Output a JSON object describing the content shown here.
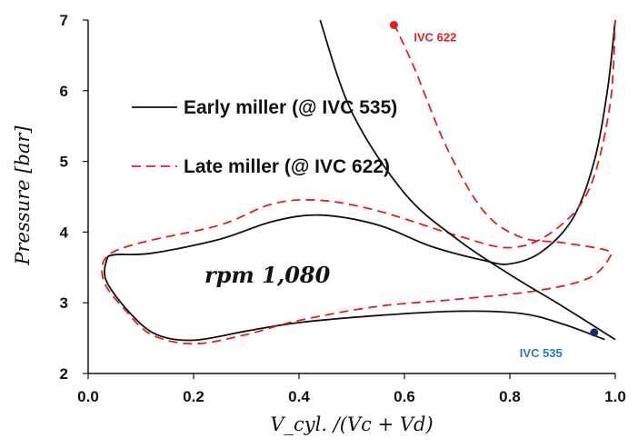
{
  "chart_data": {
    "type": "line",
    "xlabel": "V_cyl. /(Vc + Vd)",
    "ylabel": "Pressure [bar]",
    "xlim": [
      0.0,
      1.0
    ],
    "ylim": [
      2,
      7
    ],
    "xticks": [
      "0.0",
      "0.2",
      "0.4",
      "0.6",
      "0.8",
      "1.0"
    ],
    "yticks": [
      "2",
      "3",
      "4",
      "5",
      "6",
      "7"
    ],
    "grid": false,
    "legend_placement": "upper-left",
    "annotation_text": "rpm  1,080",
    "series": [
      {
        "name": "Early miller (@ IVC 535)",
        "style": "solid",
        "color": "#111111",
        "points": [
          [
            0.98,
            2.48
          ],
          [
            0.9,
            2.7
          ],
          [
            0.82,
            2.85
          ],
          [
            0.7,
            2.88
          ],
          [
            0.55,
            2.82
          ],
          [
            0.4,
            2.72
          ],
          [
            0.3,
            2.6
          ],
          [
            0.2,
            2.47
          ],
          [
            0.13,
            2.55
          ],
          [
            0.08,
            2.85
          ],
          [
            0.035,
            3.3
          ],
          [
            0.035,
            3.6
          ],
          [
            0.05,
            3.68
          ],
          [
            0.12,
            3.7
          ],
          [
            0.25,
            3.9
          ],
          [
            0.35,
            4.15
          ],
          [
            0.44,
            4.24
          ],
          [
            0.55,
            4.1
          ],
          [
            0.65,
            3.8
          ],
          [
            0.75,
            3.6
          ],
          [
            0.8,
            3.55
          ],
          [
            0.86,
            3.72
          ],
          [
            0.92,
            4.2
          ],
          [
            0.96,
            5.0
          ],
          [
            0.985,
            6.0
          ],
          [
            1.0,
            7.0
          ]
        ]
      },
      {
        "name": "Late miller (@ IVC 622)",
        "style": "dashed",
        "color": "#e02020",
        "points": [
          [
            0.58,
            6.95
          ],
          [
            0.62,
            6.3
          ],
          [
            0.68,
            5.2
          ],
          [
            0.75,
            4.3
          ],
          [
            0.82,
            3.93
          ],
          [
            0.9,
            3.85
          ],
          [
            0.98,
            3.75
          ],
          [
            0.99,
            3.65
          ],
          [
            0.95,
            3.35
          ],
          [
            0.85,
            3.17
          ],
          [
            0.7,
            3.05
          ],
          [
            0.55,
            2.95
          ],
          [
            0.4,
            2.75
          ],
          [
            0.3,
            2.55
          ],
          [
            0.2,
            2.42
          ],
          [
            0.12,
            2.55
          ],
          [
            0.07,
            2.9
          ],
          [
            0.03,
            3.3
          ],
          [
            0.035,
            3.65
          ],
          [
            0.1,
            3.85
          ],
          [
            0.25,
            4.1
          ],
          [
            0.35,
            4.4
          ],
          [
            0.44,
            4.45
          ],
          [
            0.55,
            4.3
          ],
          [
            0.7,
            3.95
          ],
          [
            0.8,
            3.78
          ],
          [
            0.88,
            4.0
          ],
          [
            0.95,
            4.6
          ],
          [
            0.99,
            5.8
          ],
          [
            1.0,
            7.0
          ]
        ]
      },
      {
        "name": "",
        "style": "solid",
        "color": "#111111",
        "points": [
          [
            0.44,
            7.0
          ],
          [
            0.5,
            5.7
          ],
          [
            0.6,
            4.55
          ],
          [
            0.7,
            3.9
          ],
          [
            0.8,
            3.4
          ],
          [
            0.9,
            2.95
          ],
          [
            1.0,
            2.48
          ]
        ]
      }
    ],
    "markers": [
      {
        "label": "IVC 622",
        "x": 0.58,
        "y": 6.93,
        "color": "#e02020"
      },
      {
        "label": "IVC 535",
        "x": 0.96,
        "y": 2.58,
        "color": "#1a2a6c"
      }
    ],
    "annotation_color": "#2a7ab5"
  }
}
